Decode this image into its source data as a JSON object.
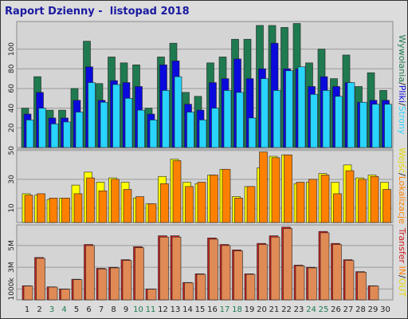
{
  "title": "Raport Dzienny -  listopad 2018",
  "colors": {
    "hits": "#1f7a50",
    "files": "#0a0adc",
    "pages": "#29d4ff",
    "visits": "#ffff00",
    "sites": "#ff8000",
    "kbytes": "#d21e1e",
    "kbytes_alt": "#e08a55",
    "weekend": "#1f7a50",
    "weekday": "#222222"
  },
  "legends": {
    "top": [
      {
        "text": "Wywołania",
        "color": "#1f7a50"
      },
      {
        "text": "/",
        "color": "#222222"
      },
      {
        "text": "Pliki",
        "color": "#0a0adc"
      },
      {
        "text": "/",
        "color": "#222222"
      },
      {
        "text": "Strony",
        "color": "#29d4ff"
      }
    ],
    "middle": [
      {
        "text": "Wejść",
        "color": "#e8d800"
      },
      {
        "text": "/",
        "color": "#222222"
      },
      {
        "text": "Lokalizacje",
        "color": "#ff8000"
      }
    ],
    "bottom": [
      {
        "text": "Transfer",
        "color": "#d21e1e"
      },
      {
        "text": "IN",
        "color": "#ff8000"
      },
      {
        "text": "/",
        "color": "#222222"
      },
      {
        "text": "OUT",
        "color": "#e8d800"
      }
    ]
  },
  "chart_data": {
    "type": "bar",
    "title": "Raport Dzienny -  listopad 2018",
    "categories": [
      "1",
      "2",
      "3",
      "4",
      "5",
      "6",
      "7",
      "8",
      "9",
      "10",
      "11",
      "12",
      "13",
      "14",
      "15",
      "16",
      "17",
      "18",
      "19",
      "20",
      "21",
      "22",
      "23",
      "24",
      "25",
      "26",
      "27",
      "28",
      "29",
      "30"
    ],
    "weekend_days": [
      "3",
      "4",
      "10",
      "11",
      "17",
      "18",
      "24",
      "25"
    ],
    "panels": [
      {
        "name": "top",
        "ylim": [
          0,
          128
        ],
        "yticks": [
          20,
          40,
          60,
          80,
          100
        ],
        "series": [
          {
            "name": "Wywołania",
            "values": [
              40,
              72,
              38,
              38,
              60,
              108,
              65,
              92,
              86,
              84,
              40,
              92,
              106,
              56,
              52,
              86,
              92,
              110,
              110,
              124,
              124,
              122,
              126,
              86,
              100,
              70,
              94,
              62,
              76,
              58
            ]
          },
          {
            "name": "Pliki",
            "values": [
              34,
              56,
              30,
              30,
              48,
              82,
              48,
              68,
              66,
              62,
              34,
              84,
              88,
              44,
              38,
              66,
              70,
              90,
              70,
              80,
              106,
              80,
              80,
              62,
              72,
              62,
              66,
              46,
              48,
              48
            ]
          },
          {
            "name": "Strony",
            "values": [
              28,
              40,
              24,
              26,
              36,
              66,
              46,
              64,
              50,
              38,
              28,
              58,
              72,
              36,
              28,
              40,
              58,
              56,
              30,
              70,
              58,
              78,
              82,
              54,
              58,
              52,
              66,
              46,
              44,
              44
            ]
          }
        ]
      },
      {
        "name": "middle",
        "ylim": [
          0,
          51
        ],
        "yticks": [
          10,
          30,
          50
        ],
        "series": [
          {
            "name": "Wejść",
            "values": [
              20,
              19,
              16,
              17,
              26,
              35,
              28,
              31,
              28,
              17,
              13,
              32,
              44,
              28,
              27,
              33,
              37,
              18,
              25,
              38,
              46,
              47,
              27,
              28,
              34,
              28,
              40,
              31,
              33,
              28
            ]
          },
          {
            "name": "Lokalizacje",
            "values": [
              19,
              20,
              17,
              17,
              20,
              31,
              22,
              30,
              23,
              18,
              13,
              27,
              43,
              25,
              28,
              33,
              37,
              17,
              25,
              49,
              45,
              47,
              28,
              30,
              33,
              20,
              36,
              30,
              32,
              23
            ]
          }
        ]
      },
      {
        "name": "bottom",
        "yticks_labels": [
          "1000k",
          "3M",
          "5M"
        ],
        "yticks": [
          1000,
          3000,
          5000
        ],
        "ylim": [
          0,
          6900
        ],
        "series": [
          {
            "name": "Transfer",
            "values": [
              1300,
              3900,
              1200,
              1000,
              1900,
              5100,
              2900,
              3000,
              3700,
              4900,
              1000,
              5900,
              5900,
              1600,
              2400,
              5700,
              5100,
              4600,
              2400,
              5200,
              5900,
              6700,
              3200,
              3000,
              6300,
              5200,
              3700,
              2600,
              1300,
              0
            ]
          }
        ]
      }
    ]
  }
}
